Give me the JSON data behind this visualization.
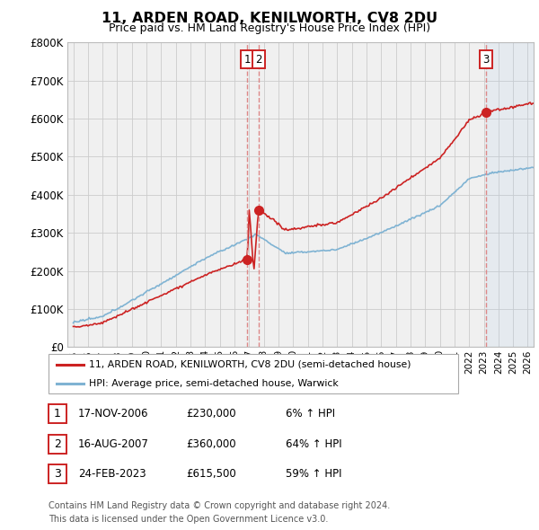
{
  "title": "11, ARDEN ROAD, KENILWORTH, CV8 2DU",
  "subtitle": "Price paid vs. HM Land Registry's House Price Index (HPI)",
  "ylim": [
    0,
    800000
  ],
  "yticks": [
    0,
    100000,
    200000,
    300000,
    400000,
    500000,
    600000,
    700000,
    800000
  ],
  "ytick_labels": [
    "£0",
    "£100K",
    "£200K",
    "£300K",
    "£400K",
    "£500K",
    "£600K",
    "£700K",
    "£800K"
  ],
  "price_paid_color": "#cc2222",
  "hpi_color": "#7fb3d3",
  "vline_color": "#dd8888",
  "transactions": [
    {
      "label": "1",
      "date_num": 2006.88,
      "price": 230000
    },
    {
      "label": "2",
      "date_num": 2007.63,
      "price": 360000
    },
    {
      "label": "3",
      "date_num": 2023.13,
      "price": 615500
    }
  ],
  "legend_line1": "11, ARDEN ROAD, KENILWORTH, CV8 2DU (semi-detached house)",
  "legend_line2": "HPI: Average price, semi-detached house, Warwick",
  "table_rows": [
    {
      "num": "1",
      "date": "17-NOV-2006",
      "price": "£230,000",
      "pct": "6% ↑ HPI"
    },
    {
      "num": "2",
      "date": "16-AUG-2007",
      "price": "£360,000",
      "pct": "64% ↑ HPI"
    },
    {
      "num": "3",
      "date": "24-FEB-2023",
      "price": "£615,500",
      "pct": "59% ↑ HPI"
    }
  ],
  "footer_line1": "Contains HM Land Registry data © Crown copyright and database right 2024.",
  "footer_line2": "This data is licensed under the Open Government Licence v3.0.",
  "background_color": "#ffffff",
  "plot_bg_color": "#f0f0f0",
  "future_shade_start": 2023.13,
  "xlim_left": 1994.6,
  "xlim_right": 2026.4
}
